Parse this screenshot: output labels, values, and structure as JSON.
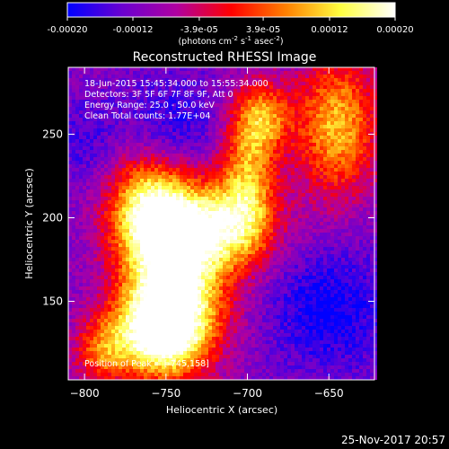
{
  "colorbar": {
    "tick_labels": [
      "-0.00020",
      "-0.00012",
      "-3.9e-05",
      "3.9e-05",
      "0.00012",
      "0.00020"
    ],
    "tick_values": [
      -0.0002,
      -0.00012,
      -3.9e-05,
      3.9e-05,
      0.00012,
      0.0002
    ],
    "units_parts": [
      "(photons cm",
      "-2",
      " s",
      "-1",
      " asec",
      "-2",
      ")"
    ],
    "range": [
      -0.0002,
      0.0002
    ],
    "color_stops": [
      "#0000ff",
      "#6a00d0",
      "#b000a0",
      "#ff0000",
      "#ff8000",
      "#ffff40",
      "#ffffff"
    ]
  },
  "chart_data": {
    "type": "heatmap",
    "title": "Reconstructed RHESSI Image",
    "xlabel": "Heliocentric X (arcsec)",
    "ylabel": "Heliocentric Y (arcsec)",
    "xlim": [
      -810,
      -622
    ],
    "ylim": [
      103,
      290
    ],
    "x_ticks": [
      -800,
      -750,
      -700,
      -650
    ],
    "y_ticks": [
      150,
      200,
      250
    ],
    "x_tick_labels": [
      "−800",
      "−750",
      "−700",
      "−650"
    ],
    "y_tick_labels": [
      "150",
      "200",
      "250"
    ],
    "peak": [
      -745,
      158
    ],
    "annotations": [
      "18-Jun-2015 15:45:34.000 to 15:55:34.000",
      "Detectors: 3F 5F 6F 7F 8F 9F, Att 0",
      "Energy Range: 25.0 - 50.0 keV",
      "Clean     Total counts: 1.77E+04"
    ],
    "peak_label": "Position of Peak = [-745,158]",
    "bright_regions": [
      {
        "x": -745,
        "y": 158,
        "sx": 22,
        "sy": 30,
        "amp": 1.0
      },
      {
        "x": -755,
        "y": 130,
        "sx": 20,
        "sy": 18,
        "amp": 0.85
      },
      {
        "x": -760,
        "y": 205,
        "sx": 18,
        "sy": 22,
        "amp": 0.85
      },
      {
        "x": -720,
        "y": 195,
        "sx": 25,
        "sy": 18,
        "amp": 0.75
      },
      {
        "x": -700,
        "y": 225,
        "sx": 12,
        "sy": 28,
        "amp": 0.6
      },
      {
        "x": -645,
        "y": 255,
        "sx": 18,
        "sy": 30,
        "amp": 0.7
      },
      {
        "x": -690,
        "y": 260,
        "sx": 12,
        "sy": 15,
        "amp": 0.55
      },
      {
        "x": -790,
        "y": 120,
        "sx": 12,
        "sy": 14,
        "amp": 0.45
      }
    ],
    "dim_regions": [
      {
        "x": -650,
        "y": 145,
        "sx": 25,
        "sy": 25,
        "amp": 1.0
      },
      {
        "x": -745,
        "y": 255,
        "sx": 20,
        "sy": 20,
        "amp": 0.7
      },
      {
        "x": -800,
        "y": 245,
        "sx": 15,
        "sy": 18,
        "amp": 0.5
      }
    ]
  },
  "footer": {
    "date": "25-Nov-2017 20:57"
  }
}
